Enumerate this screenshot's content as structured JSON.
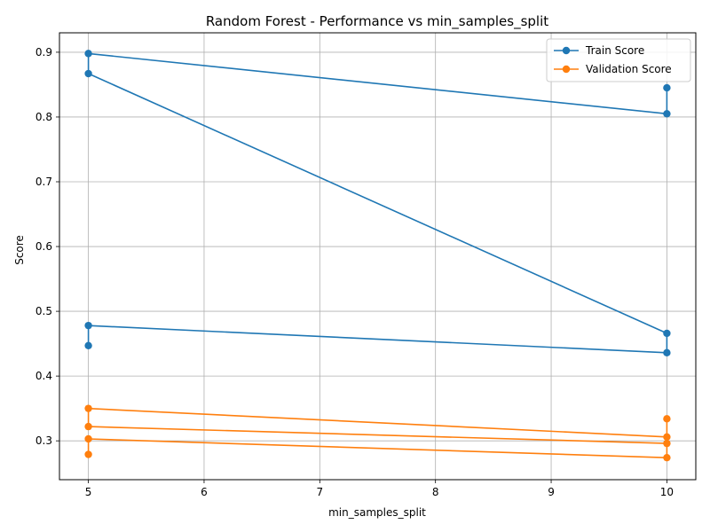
{
  "chart_data": {
    "type": "line",
    "title": "Random Forest - Performance vs min_samples_split",
    "xlabel": "min_samples_split",
    "ylabel": "Score",
    "xlim": [
      4.75,
      10.25
    ],
    "ylim": [
      0.24,
      0.93
    ],
    "xticks": [
      5,
      6,
      7,
      8,
      9,
      10
    ],
    "yticks": [
      0.3,
      0.4,
      0.5,
      0.6,
      0.7,
      0.8,
      0.9
    ],
    "grid": true,
    "legend_position": "top-right",
    "series": [
      {
        "name": "Train Score",
        "color": "#1f77b4",
        "x": [
          5,
          5,
          10,
          10,
          5,
          5,
          10,
          10
        ],
        "y": [
          0.447,
          0.478,
          0.436,
          0.466,
          0.867,
          0.898,
          0.805,
          0.845
        ]
      },
      {
        "name": "Validation Score",
        "color": "#ff7f0e",
        "x": [
          5,
          5,
          10,
          10,
          5,
          5,
          10,
          10
        ],
        "y": [
          0.279,
          0.303,
          0.274,
          0.296,
          0.322,
          0.35,
          0.306,
          0.334
        ]
      }
    ]
  }
}
